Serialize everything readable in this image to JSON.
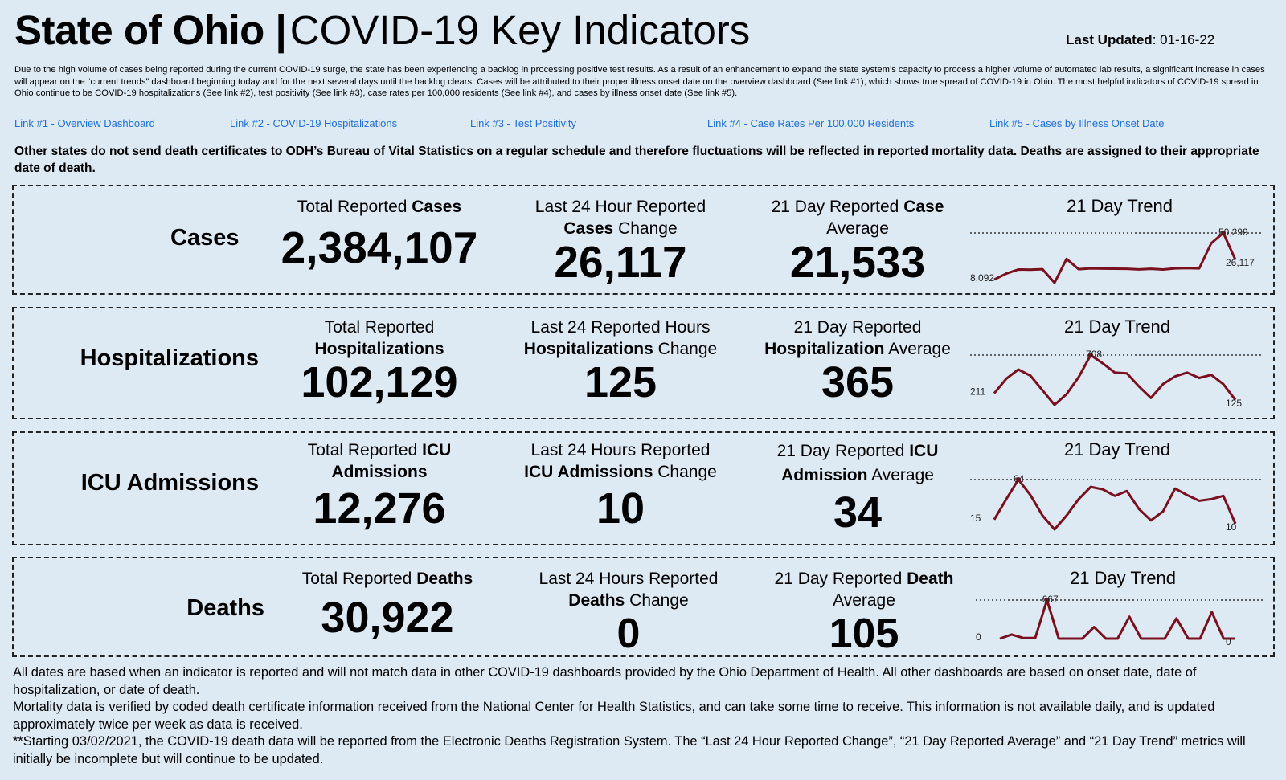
{
  "header": {
    "title_bold": "State of Ohio |",
    "title_rest": "COVID-19  Key Indicators",
    "updated_label": "Last Updated",
    "updated_value": ": 01-16-22"
  },
  "notice": "Due to the high volume of cases being reported during the current COVID-19 surge, the state has been experiencing a backlog in processing positive test results. As a result of an enhancement to expand the state system’s capacity to process a higher volume of automated lab results, a significant increase in cases will appear on the “current trends” dashboard beginning today and for the next several days until the backlog clears. Cases will be attributed to their proper illness onset date on the overview dashboard (See link #1), which shows true spread of COVID-19 in Ohio. The most helpful indicators of COVID-19 spread in Ohio continue to be COVID-19 hospitalizations (See link #2), test positivity (See link #3), case rates per 100,000 residents (See link #4), and cases by illness onset date (See link #5).",
  "links": [
    "Link #1 - Overview Dashboard",
    "Link #2 - COVID-19 Hospitalizations",
    "Link #3 - Test Positivity",
    "Link #4 - Case Rates Per 100,000 Residents",
    "Link #5 - Cases by Illness Onset Date"
  ],
  "warning": "Other states do not send death certificates to ODH’s Bureau of Vital Statistics on a regular schedule and therefore fluctuations will be reflected in reported mortality data. Deaths are assigned to their appropriate date of death.",
  "trend_title": "21 Day Trend",
  "rows": {
    "cases": {
      "label": "Cases",
      "total_pre": "Total Reported ",
      "total_bold": "Cases",
      "total_value": "2,384,107",
      "change_pre": "Last 24 Hour Reported",
      "change_bold": "Cases",
      "change_post": " Change",
      "change_value": "26,117",
      "avg_pre": "21 Day Reported ",
      "avg_bold": "Case",
      "avg_post": "Average",
      "avg_value": "21,533",
      "trend": {
        "start_label": "8,092",
        "peak_label": "50,299",
        "end_label": "26,117",
        "values": [
          8092,
          13500,
          17200,
          17000,
          17500,
          5200,
          26800,
          17500,
          18200,
          18000,
          17900,
          17800,
          17300,
          17800,
          17200,
          18200,
          18500,
          18200,
          41000,
          50299,
          26117
        ]
      }
    },
    "hosp": {
      "label": "Hospitalizations",
      "total_pre": "Total Reported",
      "total_bold": "Hospitalizations",
      "total_value": "102,129",
      "change_pre": "Last 24 Reported Hours",
      "change_bold": "Hospitalizations",
      "change_post": " Change",
      "change_value": "125",
      "avg_pre": "21 Day Reported",
      "avg_bold": "Hospitalization",
      "avg_post": " Average",
      "avg_value": "365",
      "trend": {
        "start_label": "211",
        "peak_label": "708",
        "end_label": "125",
        "values": [
          211,
          400,
          520,
          440,
          250,
          60,
          200,
          420,
          708,
          600,
          480,
          470,
          300,
          150,
          330,
          430,
          480,
          410,
          450,
          330,
          125
        ]
      }
    },
    "icu": {
      "label": "ICU Admissions",
      "total_pre": "Total Reported ",
      "total_bold": "ICU",
      "total_bold2": "Admissions",
      "total_value": "12,276",
      "change_pre": "Last 24 Hours Reported",
      "change_bold": "ICU Admissions",
      "change_post": " Change",
      "change_value": "10",
      "avg_pre": "21 Day Reported ",
      "avg_bold": "ICU",
      "avg_bold2": "Admission",
      "avg_post": " Average",
      "avg_value": "34",
      "trend": {
        "start_label": "15",
        "peak_label": "64",
        "end_label": "10",
        "values": [
          15,
          40,
          64,
          45,
          20,
          3,
          20,
          40,
          55,
          52,
          44,
          50,
          28,
          14,
          25,
          53,
          45,
          38,
          40,
          44,
          10
        ]
      }
    },
    "deaths": {
      "label": "Deaths",
      "total_pre": "Total Reported ",
      "total_bold": "Deaths",
      "total_value": "30,922",
      "change_pre": "Last 24 Hours Reported",
      "change_bold": "Deaths",
      "change_post": " Change",
      "change_value": "0",
      "avg_pre": "21 Day Reported ",
      "avg_bold": "Death",
      "avg_post": "Average",
      "avg_value": "105",
      "trend": {
        "start_label": "0",
        "peak_label": "667",
        "end_label": "0",
        "values": [
          0,
          70,
          10,
          10,
          667,
          0,
          0,
          0,
          200,
          0,
          0,
          380,
          0,
          0,
          0,
          350,
          0,
          0,
          460,
          0,
          0
        ]
      }
    }
  },
  "footer": [
    "All dates are based when an indicator is reported and will not match data in other COVID-19 dashboards provided by the Ohio Department of Health. All other dashboards are based on onset date, date of hospitalization, or date of death.",
    "Mortality data is verified by coded death certificate information received from the National Center for Health Statistics, and can take some time to receive. This information is not available daily, and is updated approximately twice per week as data is received.",
    "**Starting 03/02/2021, the COVID-19 death data will be reported from the Electronic Deaths Registration System. The “Last 24 Hour Reported Change”, “21 Day Reported Average” and “21 Day Trend” metrics will initially be incomplete but will continue to be updated."
  ],
  "colors": {
    "background": "#dde9f3",
    "link": "#1f6fd6",
    "trend_line": "#7a0f1e"
  }
}
